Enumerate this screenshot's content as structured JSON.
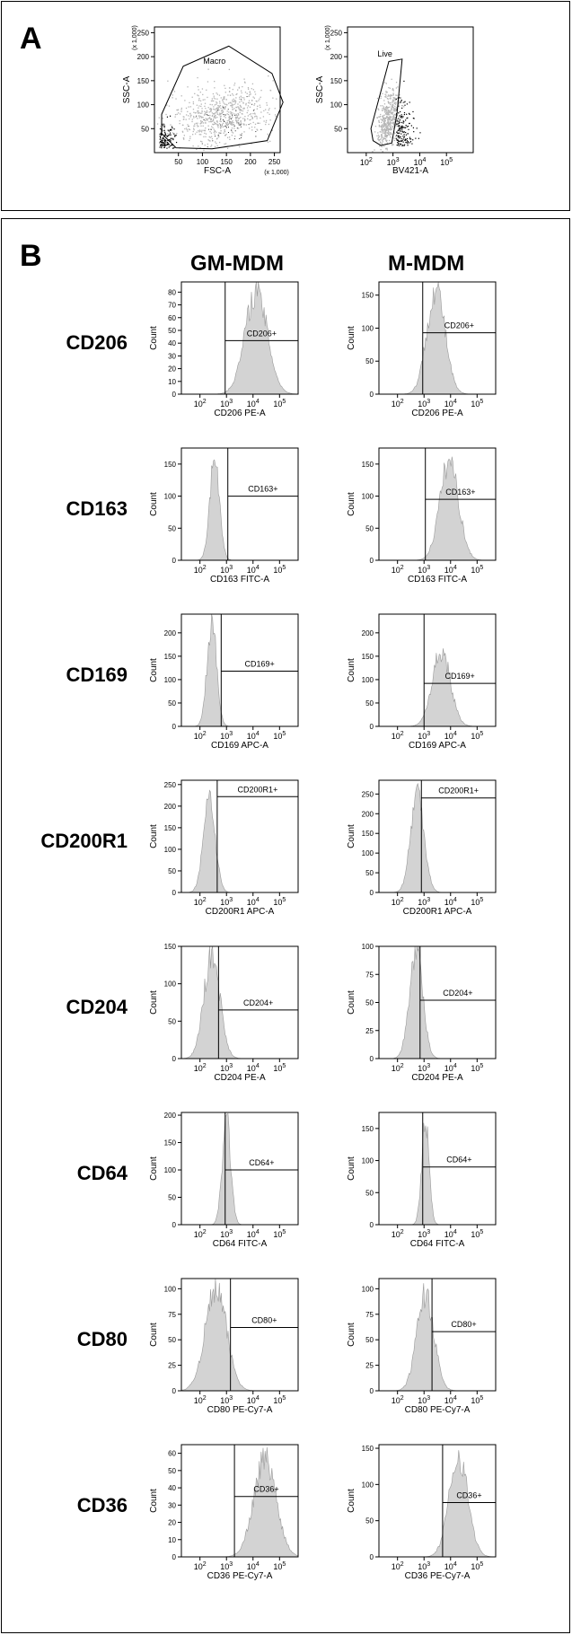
{
  "panels": {
    "a_label": "A",
    "b_label": "B"
  },
  "columns": [
    "GM-MDM",
    "M-MDM"
  ],
  "markers": [
    "CD206",
    "CD163",
    "CD169",
    "CD200R1",
    "CD204",
    "CD64",
    "CD80",
    "CD36"
  ],
  "chart_data": [
    {
      "type": "scatter",
      "panel": "A",
      "id": "gate-macro",
      "xlabel": "FSC-A",
      "ylabel": "SSC-A",
      "x_scale_note": "(x 1,000)",
      "y_scale_note": "(x 1,000)",
      "xlim": [
        0,
        262
      ],
      "ylim": [
        0,
        262
      ],
      "xticks": [
        50,
        100,
        150,
        200,
        250
      ],
      "yticks": [
        50,
        100,
        150,
        200,
        250
      ],
      "gate": {
        "name": "Macro",
        "polygon": [
          [
            15,
            80
          ],
          [
            60,
            180
          ],
          [
            155,
            222
          ],
          [
            245,
            165
          ],
          [
            268,
            105
          ],
          [
            235,
            25
          ],
          [
            120,
            8
          ],
          [
            45,
            10
          ],
          [
            15,
            40
          ]
        ]
      },
      "point_color": "#b5b5b5",
      "dense_color": "#000000"
    },
    {
      "type": "scatter",
      "panel": "A",
      "id": "gate-live",
      "xlabel": "BV421-A",
      "ylabel": "SSC-A",
      "y_scale_note": "(x 1,000)",
      "x_scale": "log",
      "xlim": [
        0,
        1000000
      ],
      "ylim": [
        0,
        262
      ],
      "xticks": [
        "10^2",
        "10^3",
        "10^4",
        "10^5"
      ],
      "yticks": [
        50,
        100,
        150,
        200,
        250
      ],
      "gate": {
        "name": "Live",
        "polygon": [
          [
            150,
            50
          ],
          [
            700,
            190
          ],
          [
            2200,
            195
          ],
          [
            1400,
            80
          ],
          [
            900,
            20
          ],
          [
            350,
            15
          ],
          [
            180,
            25
          ]
        ]
      }
    },
    {
      "type": "histogram",
      "panel": "B",
      "marker": "CD206",
      "column": "GM-MDM",
      "xlabel": "CD206 PE-A",
      "ylabel": "Count",
      "x_scale": "log",
      "xlim_exp": [
        1.3,
        5.7
      ],
      "ylim": [
        0,
        88
      ],
      "yticks": [
        0,
        10,
        20,
        30,
        40,
        50,
        60,
        70,
        80
      ],
      "gate_label": "CD206+",
      "gate_x_exp": 2.95,
      "gate_line_y": 42,
      "peak_exp": 4.12,
      "peak_height": 80,
      "spread": 0.42
    },
    {
      "type": "histogram",
      "panel": "B",
      "marker": "CD206",
      "column": "M-MDM",
      "xlabel": "CD206 PE-A",
      "ylabel": "Count",
      "x_scale": "log",
      "xlim_exp": [
        1.3,
        5.7
      ],
      "ylim": [
        0,
        170
      ],
      "yticks": [
        0,
        50,
        100,
        150
      ],
      "gate_label": "CD206+",
      "gate_x_exp": 2.95,
      "gate_line_y": 93,
      "peak_exp": 3.45,
      "peak_height": 160,
      "spread": 0.34
    },
    {
      "type": "histogram",
      "panel": "B",
      "marker": "CD163",
      "column": "GM-MDM",
      "xlabel": "CD163 FITC-A",
      "ylabel": "Count",
      "x_scale": "log",
      "xlim_exp": [
        1.3,
        5.7
      ],
      "ylim": [
        0,
        175
      ],
      "yticks": [
        0,
        50,
        100,
        150
      ],
      "gate_label": "CD163+",
      "gate_x_exp": 3.05,
      "gate_line_y": 100,
      "peak_exp": 2.55,
      "peak_height": 160,
      "spread": 0.18
    },
    {
      "type": "histogram",
      "panel": "B",
      "marker": "CD163",
      "column": "M-MDM",
      "xlabel": "CD163 FITC-A",
      "ylabel": "Count",
      "x_scale": "log",
      "xlim_exp": [
        1.3,
        5.7
      ],
      "ylim": [
        0,
        175
      ],
      "yticks": [
        0,
        50,
        100,
        150
      ],
      "gate_label": "CD163+",
      "gate_x_exp": 3.05,
      "gate_line_y": 95,
      "peak_exp": 3.95,
      "peak_height": 155,
      "spread": 0.35
    },
    {
      "type": "histogram",
      "panel": "B",
      "marker": "CD169",
      "column": "GM-MDM",
      "xlabel": "CD169 APC-A",
      "ylabel": "Count",
      "x_scale": "log",
      "xlim_exp": [
        1.3,
        5.7
      ],
      "ylim": [
        0,
        240
      ],
      "yticks": [
        0,
        50,
        100,
        150,
        200
      ],
      "gate_label": "CD169+",
      "gate_x_exp": 2.8,
      "gate_line_y": 118,
      "peak_exp": 2.45,
      "peak_height": 220,
      "spread": 0.18
    },
    {
      "type": "histogram",
      "panel": "B",
      "marker": "CD169",
      "column": "M-MDM",
      "xlabel": "CD169 APC-A",
      "ylabel": "Count",
      "x_scale": "log",
      "xlim_exp": [
        1.3,
        5.7
      ],
      "ylim": [
        0,
        240
      ],
      "yticks": [
        0,
        50,
        100,
        150,
        200
      ],
      "gate_label": "CD169+",
      "gate_x_exp": 3.0,
      "gate_line_y": 92,
      "peak_exp": 3.65,
      "peak_height": 160,
      "spread": 0.34
    },
    {
      "type": "histogram",
      "panel": "B",
      "marker": "CD200R1",
      "column": "GM-MDM",
      "xlabel": "CD200R1 APC-A",
      "ylabel": "Count",
      "x_scale": "log",
      "xlim_exp": [
        1.3,
        5.7
      ],
      "ylim": [
        0,
        260
      ],
      "yticks": [
        0,
        50,
        100,
        150,
        200,
        250
      ],
      "gate_label": "CD200R1+",
      "gate_x_exp": 2.65,
      "gate_line_y": 222,
      "peak_exp": 2.35,
      "peak_height": 225,
      "spread": 0.22
    },
    {
      "type": "histogram",
      "panel": "B",
      "marker": "CD200R1",
      "column": "M-MDM",
      "xlabel": "CD200R1 APC-A",
      "ylabel": "Count",
      "x_scale": "log",
      "xlim_exp": [
        1.3,
        5.7
      ],
      "ylim": [
        0,
        285
      ],
      "yticks": [
        0,
        50,
        100,
        150,
        200,
        250
      ],
      "gate_label": "CD200R1+",
      "gate_x_exp": 2.9,
      "gate_line_y": 240,
      "peak_exp": 2.75,
      "peak_height": 255,
      "spread": 0.25
    },
    {
      "type": "histogram",
      "panel": "B",
      "marker": "CD204",
      "column": "GM-MDM",
      "xlabel": "CD204 PE-A",
      "ylabel": "Count",
      "x_scale": "log",
      "xlim_exp": [
        1.3,
        5.7
      ],
      "ylim": [
        0,
        150
      ],
      "yticks": [
        0,
        50,
        100,
        150
      ],
      "gate_label": "CD204+",
      "gate_x_exp": 2.7,
      "gate_line_y": 65,
      "peak_exp": 2.45,
      "peak_height": 140,
      "spread": 0.3
    },
    {
      "type": "histogram",
      "panel": "B",
      "marker": "CD204",
      "column": "M-MDM",
      "xlabel": "CD204 PE-A",
      "ylabel": "Count",
      "x_scale": "log",
      "xlim_exp": [
        1.3,
        5.7
      ],
      "ylim": [
        0,
        100
      ],
      "yticks": [
        0,
        25,
        50,
        75,
        100
      ],
      "gate_label": "CD204+",
      "gate_x_exp": 2.85,
      "gate_line_y": 52,
      "peak_exp": 2.7,
      "peak_height": 95,
      "spread": 0.25
    },
    {
      "type": "histogram",
      "panel": "B",
      "marker": "CD64",
      "column": "GM-MDM",
      "xlabel": "CD64 FITC-A",
      "ylabel": "Count",
      "x_scale": "log",
      "xlim_exp": [
        1.3,
        5.7
      ],
      "ylim": [
        0,
        205
      ],
      "yticks": [
        0,
        50,
        100,
        150,
        200
      ],
      "gate_label": "CD64+",
      "gate_x_exp": 2.95,
      "gate_line_y": 100,
      "peak_exp": 3.0,
      "peak_height": 190,
      "spread": 0.16
    },
    {
      "type": "histogram",
      "panel": "B",
      "marker": "CD64",
      "column": "M-MDM",
      "xlabel": "CD64 FITC-A",
      "ylabel": "Count",
      "x_scale": "log",
      "xlim_exp": [
        1.3,
        5.7
      ],
      "ylim": [
        0,
        175
      ],
      "yticks": [
        0,
        50,
        100,
        150
      ],
      "gate_label": "CD64+",
      "gate_x_exp": 2.95,
      "gate_line_y": 90,
      "peak_exp": 3.05,
      "peak_height": 160,
      "spread": 0.14
    },
    {
      "type": "histogram",
      "panel": "B",
      "marker": "CD80",
      "column": "GM-MDM",
      "xlabel": "CD80 PE-Cy7-A",
      "ylabel": "Count",
      "x_scale": "log",
      "xlim_exp": [
        1.3,
        5.7
      ],
      "ylim": [
        0,
        110
      ],
      "yticks": [
        0,
        25,
        50,
        75,
        100
      ],
      "gate_label": "CD80+",
      "gate_x_exp": 3.15,
      "gate_line_y": 62,
      "peak_exp": 2.6,
      "peak_height": 100,
      "spread": 0.4
    },
    {
      "type": "histogram",
      "panel": "B",
      "marker": "CD80",
      "column": "M-MDM",
      "xlabel": "CD80 PE-Cy7-A",
      "ylabel": "Count",
      "x_scale": "log",
      "xlim_exp": [
        1.3,
        5.7
      ],
      "ylim": [
        0,
        110
      ],
      "yticks": [
        0,
        25,
        50,
        75,
        100
      ],
      "gate_label": "CD80+",
      "gate_x_exp": 3.3,
      "gate_line_y": 58,
      "peak_exp": 3.05,
      "peak_height": 95,
      "spread": 0.32
    },
    {
      "type": "histogram",
      "panel": "B",
      "marker": "CD36",
      "column": "GM-MDM",
      "xlabel": "CD36 PE-Cy7-A",
      "ylabel": "Count",
      "x_scale": "log",
      "xlim_exp": [
        1.3,
        5.7
      ],
      "ylim": [
        0,
        65
      ],
      "yticks": [
        0,
        10,
        20,
        30,
        40,
        50,
        60
      ],
      "gate_label": "CD36+",
      "gate_x_exp": 3.3,
      "gate_line_y": 35,
      "peak_exp": 4.45,
      "peak_height": 57,
      "spread": 0.42
    },
    {
      "type": "histogram",
      "panel": "B",
      "marker": "CD36",
      "column": "M-MDM",
      "xlabel": "CD36 PE-Cy7-A",
      "ylabel": "Count",
      "x_scale": "log",
      "xlim_exp": [
        1.3,
        5.7
      ],
      "ylim": [
        0,
        155
      ],
      "yticks": [
        0,
        50,
        100,
        150
      ],
      "gate_label": "CD36+",
      "gate_x_exp": 3.7,
      "gate_line_y": 75,
      "peak_exp": 4.3,
      "peak_height": 140,
      "spread": 0.35
    }
  ]
}
